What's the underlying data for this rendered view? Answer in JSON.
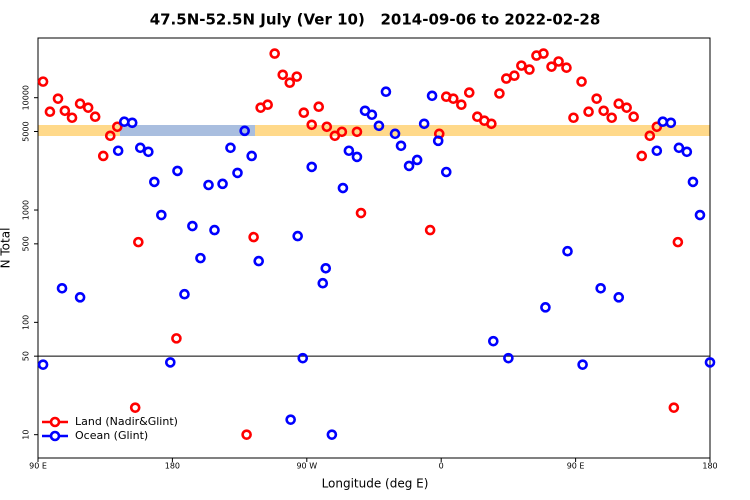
{
  "chart_data": {
    "type": "scatter",
    "title": "47.5N-52.5N July (Ver 10)   2014-09-06 to 2022-02-28",
    "x_label": "Longitude (deg E)",
    "y_label": "N Total",
    "xlim": [
      90,
      540
    ],
    "xticks": [
      {
        "value": 90,
        "label": "90 E"
      },
      180,
      {
        "value": 270,
        "label": "90 W"
      },
      {
        "value": 360,
        "label": "0"
      },
      {
        "value": 450,
        "label": "90 E"
      },
      {
        "value": 540,
        "label": "180"
      }
    ],
    "ylim": [
      6.2,
      34000
    ],
    "y_log": true,
    "yticks": [
      10,
      50,
      100,
      500,
      1000,
      5000,
      10000
    ],
    "reference_line": 50,
    "legend": "bottom-left",
    "series": [
      {
        "name": "Land (Nadir&Glint)",
        "color": "#ff0000",
        "x": [
          93.4,
          98,
          103.4,
          108,
          112.8,
          118.2,
          123.6,
          128.3,
          133.7,
          138.4,
          143.1,
          157.2,
          182.7,
          155.1,
          229.7,
          234.4,
          239.1,
          243.8,
          248.5,
          253.9,
          258.6,
          263.3,
          268,
          273.3,
          278,
          283.4,
          288.8,
          293.5,
          303.6,
          306.3,
          352.6,
          358.7,
          363.4,
          368.1,
          373.5,
          378.8,
          384.2,
          388.9,
          393.6,
          399,
          403.6,
          409,
          413.7,
          419.1,
          423.8,
          428.5,
          433.9,
          438.6,
          443.9,
          448.6,
          454,
          458.7,
          464.1,
          468.8,
          474.2,
          478.9,
          484.2,
          488.9,
          494.3,
          499.7,
          504.4,
          518.5,
          515.8
        ],
        "values": [
          13900,
          7500,
          9800,
          7650,
          6630,
          8840,
          8150,
          6770,
          3030,
          4580,
          5510,
          518,
          72,
          17.4,
          10,
          574,
          8150,
          8660,
          24700,
          16000,
          13600,
          15400,
          7350,
          5740,
          8310,
          5510,
          4580,
          4970,
          4970,
          940,
          663,
          4770,
          10200,
          9800,
          8660,
          11100,
          6770,
          6240,
          5860,
          10900,
          14800,
          15700,
          19300,
          17800,
          23700,
          24700,
          18900,
          21000,
          18500,
          6630,
          13900,
          7500,
          9800,
          7650,
          6630,
          8840,
          8150,
          6770,
          3030,
          4580,
          5510,
          518,
          17.4
        ]
      },
      {
        "name": "Ocean (Glint)",
        "color": "#0000ff",
        "x": [
          93.4,
          106.1,
          118.2,
          143.7,
          147.8,
          153.1,
          158.5,
          163.9,
          167.9,
          172.6,
          178.6,
          183.4,
          188.1,
          193.4,
          198.8,
          204.2,
          208.2,
          213.6,
          218.9,
          223.6,
          228.4,
          233.1,
          237.8,
          259.2,
          263.9,
          267.3,
          273.3,
          280.7,
          282.7,
          286.8,
          294.2,
          298.2,
          303.6,
          309,
          313.6,
          318.3,
          323,
          329.1,
          333.1,
          338.5,
          343.9,
          348.6,
          353.9,
          358,
          363.4,
          394.9,
          405,
          429.8,
          444.6,
          454.7,
          466.8,
          478.9,
          504.4,
          508.4,
          513.8,
          519.2,
          524.5,
          528.6,
          533.3,
          540
        ],
        "values": [
          42,
          201,
          167,
          3370,
          6110,
          5980,
          3580,
          3300,
          1780,
          902,
          44,
          2230,
          178,
          720,
          373,
          1670,
          663,
          1710,
          3580,
          2140,
          5070,
          3030,
          351,
          13.6,
          586,
          48,
          2420,
          223,
          303,
          10,
          1570,
          3370,
          2970,
          7650,
          7050,
          5620,
          11300,
          4770,
          3730,
          2470,
          2790,
          5860,
          10400,
          4130,
          2180,
          68,
          48,
          136,
          430,
          42,
          201,
          167,
          3370,
          6110,
          5980,
          3580,
          3300,
          1780,
          902,
          44
        ]
      }
    ]
  }
}
